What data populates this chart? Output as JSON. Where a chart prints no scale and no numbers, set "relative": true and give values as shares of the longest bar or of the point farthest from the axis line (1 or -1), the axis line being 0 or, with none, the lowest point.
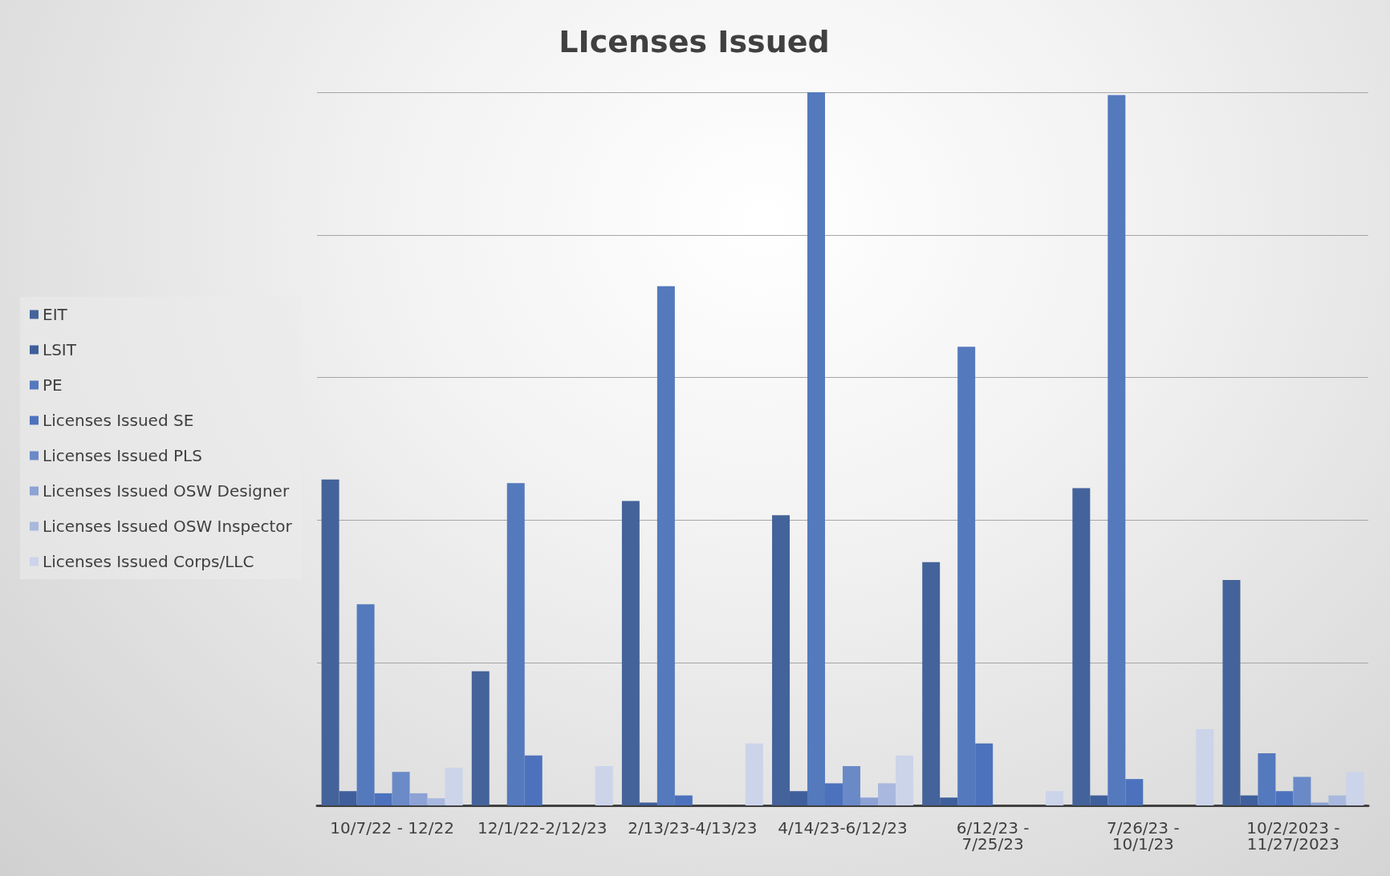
{
  "chart_data": {
    "type": "bar",
    "title": "LIcenses Issued",
    "relative": true,
    "grid": "y",
    "legend": "left",
    "categories": [
      "10/7/22 - 12/22",
      "12/1/22-2/12/23",
      "2/13/23-4/13/23",
      "4/14/23-6/12/23",
      "6/12/23 - 7/25/23",
      "7/26/23 - 10/1/23",
      "10/2/2023 - 11/27/2023"
    ],
    "series": [
      {
        "name": "EIT",
        "color": "#44639a",
        "values": [
          0.457,
          0.188,
          0.427,
          0.407,
          0.341,
          0.445,
          0.316
        ]
      },
      {
        "name": "LSIT",
        "color": "#3f5f9c",
        "values": [
          0.02,
          null,
          0.004,
          0.02,
          0.011,
          0.014,
          0.014
        ]
      },
      {
        "name": "PE",
        "color": "#5479bd",
        "values": [
          0.282,
          0.452,
          0.728,
          1,
          0.643,
          0.996,
          0.073
        ]
      },
      {
        "name": "Licenses Issued SE",
        "color": "#4d72bd",
        "values": [
          0.017,
          0.07,
          0.014,
          0.031,
          0.087,
          0.037,
          0.02
        ]
      },
      {
        "name": "Licenses Issued PLS",
        "color": "#6a8ac7",
        "values": [
          0.047,
          null,
          null,
          0.055,
          null,
          null,
          0.04
        ]
      },
      {
        "name": "Licenses Issued OSW Designer",
        "color": "#8da2d5",
        "values": [
          0.017,
          null,
          null,
          0.011,
          null,
          null,
          0.004
        ]
      },
      {
        "name": "Licenses Issued OSW Inspector",
        "color": "#a9b8de",
        "values": [
          0.01,
          null,
          null,
          0.031,
          null,
          null,
          0.014
        ]
      },
      {
        "name": "Licenses Issued Corps/LLC",
        "color": "#ccd4ea",
        "values": [
          0.053,
          0.055,
          0.087,
          0.07,
          0.02,
          0.107,
          0.047
        ]
      }
    ]
  }
}
